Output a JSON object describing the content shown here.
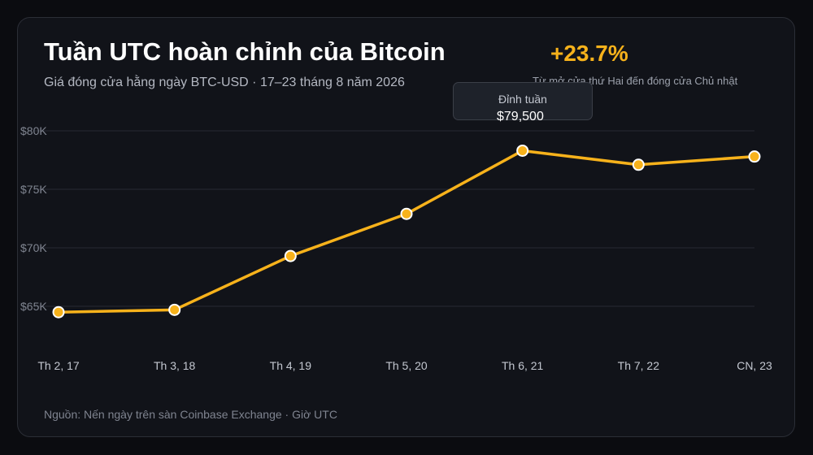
{
  "header": {
    "title": "Tuần UTC hoàn chỉnh của Bitcoin",
    "subtitle": "Giá đóng cửa hằng ngày BTC-USD · 17–23 tháng 8 năm 2026"
  },
  "summary": {
    "change": "+23.7%",
    "change_note": "Từ mở cửa thứ Hai đến đóng cửa Chủ nhật"
  },
  "tooltip": {
    "label": "Đỉnh tuần",
    "value": "$79,500"
  },
  "footer": {
    "source": "Nguồn: Nến ngày trên sàn Coinbase Exchange · Giờ UTC"
  },
  "colors": {
    "line": "#f7b21b",
    "marker_stroke": "#ffffff",
    "grid": "#262a33",
    "axis_text": "#7f8490",
    "tick_text": "#c3c7d0"
  },
  "chart_data": {
    "type": "line",
    "title": "Tuần UTC hoàn chỉnh của Bitcoin",
    "xlabel": "",
    "ylabel": "",
    "categories": [
      "Th 2, 17",
      "Th 3, 18",
      "Th 4, 19",
      "Th 5, 20",
      "Th 6, 21",
      "Th 7, 22",
      "CN, 23"
    ],
    "series": [
      {
        "values": [
          64500,
          64700,
          69300,
          72900,
          78300,
          77100,
          77800
        ]
      }
    ],
    "yticks": [
      65000,
      70000,
      75000,
      80000
    ],
    "ytick_labels": [
      "$65K",
      "$70K",
      "$75K",
      "$80K"
    ],
    "ylim": [
      62500,
      80000
    ],
    "grid": true,
    "legend": "none"
  }
}
